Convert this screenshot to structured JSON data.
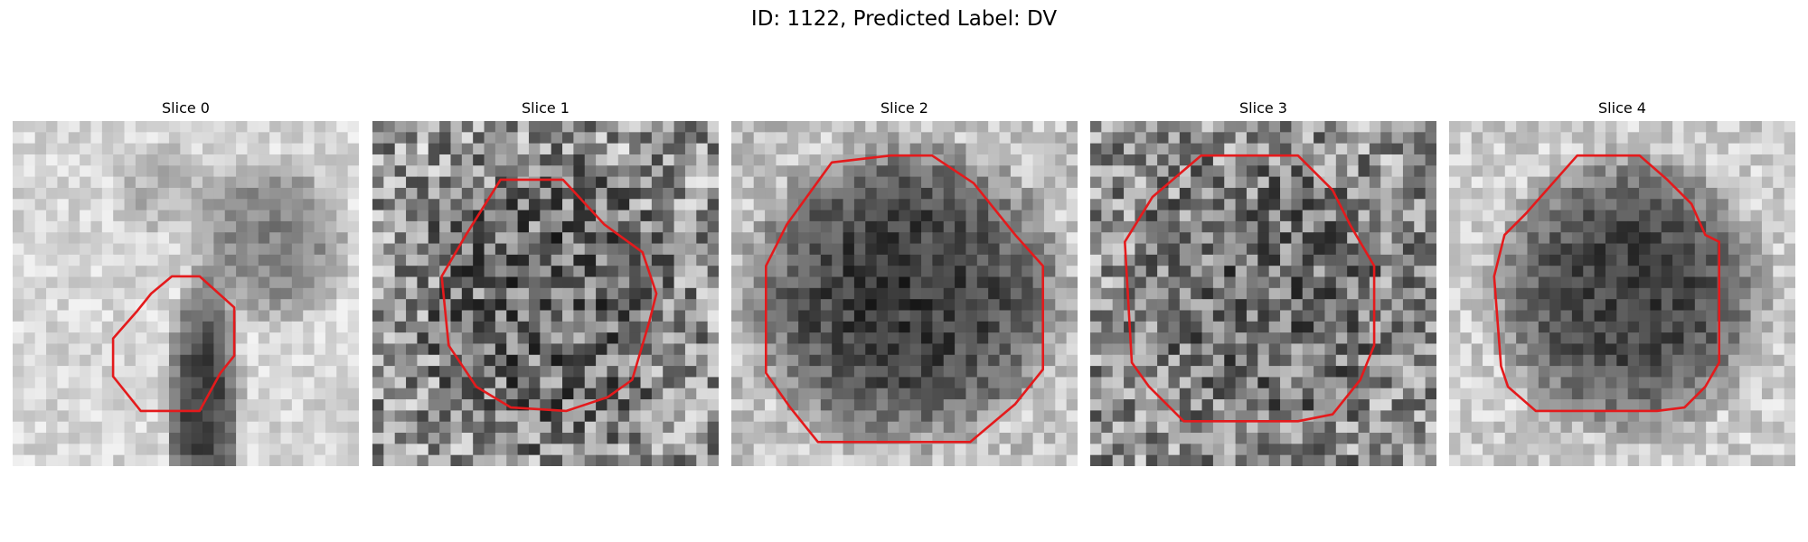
{
  "figure": {
    "title": "ID: 1122, Predicted Label: DV"
  },
  "slices": [
    {
      "label": "Slice 0",
      "background": "light",
      "blob": "small-dark-vertical"
    },
    {
      "label": "Slice 1",
      "background": "noisy",
      "blob": "noisy-round"
    },
    {
      "label": "Slice 2",
      "background": "light",
      "blob": "dark-round"
    },
    {
      "label": "Slice 3",
      "background": "noisy",
      "blob": "noisy-round"
    },
    {
      "label": "Slice 4",
      "background": "light",
      "blob": "dark-round"
    }
  ],
  "colors": {
    "contour": "#e41a1c",
    "background": "#ffffff"
  }
}
